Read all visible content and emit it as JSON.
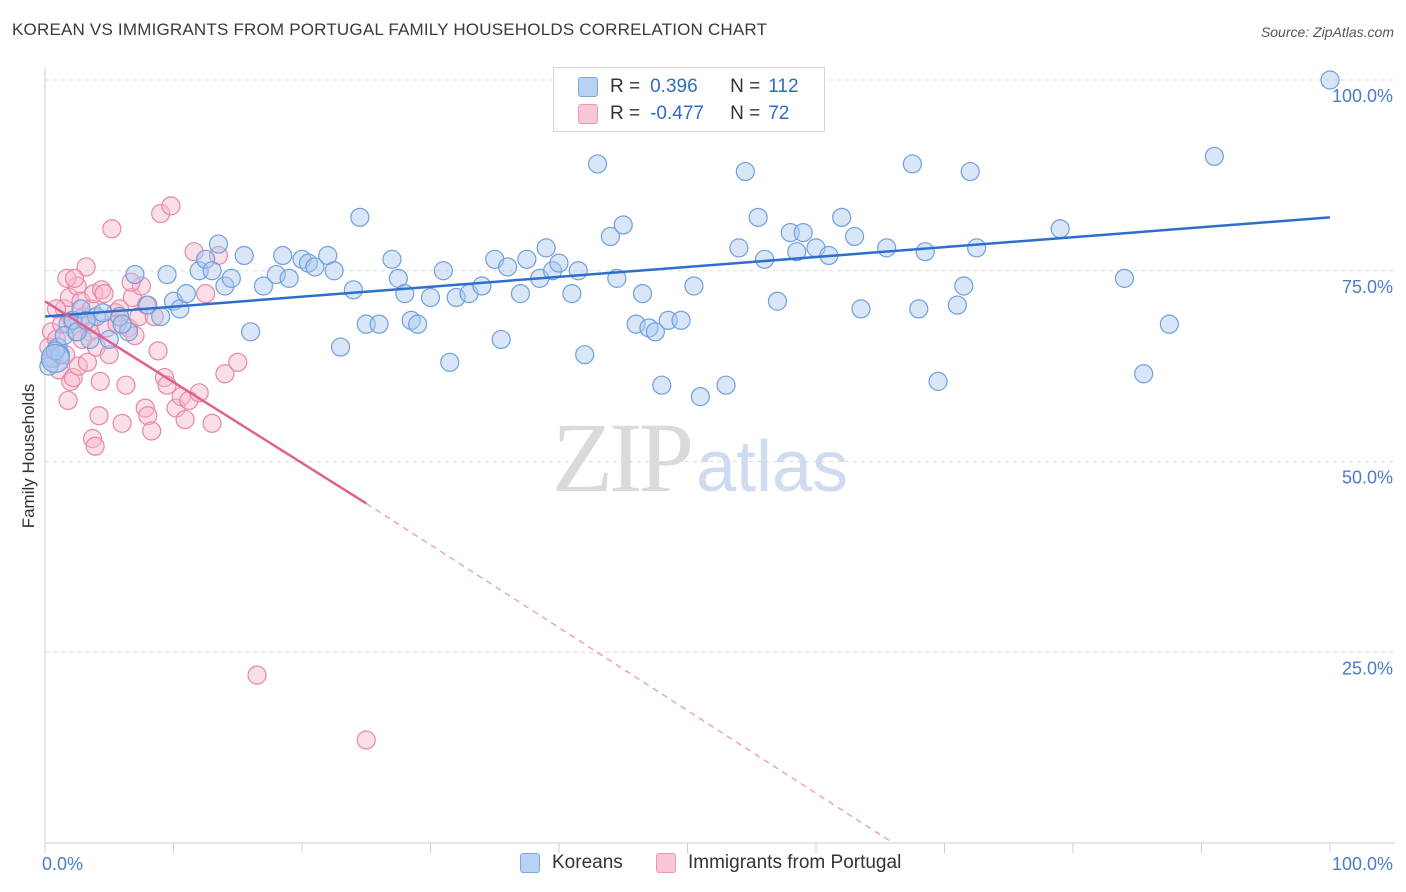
{
  "header": {
    "title": "KOREAN VS IMMIGRANTS FROM PORTUGAL FAMILY HOUSEHOLDS CORRELATION CHART",
    "source": "Source: ZipAtlas.com"
  },
  "watermark": {
    "zip": "ZIP",
    "atlas": "atlas"
  },
  "legend": {
    "korean": {
      "r_label": "R =",
      "r_value": "0.396",
      "n_label": "N =",
      "n_value": "112"
    },
    "portugal": {
      "r_label": "R =",
      "r_value": "-0.477",
      "n_label": "N =",
      "n_value": "72"
    }
  },
  "colors": {
    "korean_fill": "#a9c8f0",
    "korean_stroke": "#6f9fdc",
    "korean_line": "#2f6fcc",
    "portugal_fill": "#f7b9cc",
    "portugal_stroke": "#e886a6",
    "portugal_line": "#e0608f",
    "tick_label": "#4a7cc8"
  },
  "chart_data": {
    "type": "scatter",
    "ylabel": "Family Households",
    "xlabel": "",
    "xlim": [
      0,
      100
    ],
    "ylim": [
      0,
      100
    ],
    "x_tick_labels": [
      {
        "value": 0,
        "label": "0.0%"
      },
      {
        "value": 100,
        "label": "100.0%"
      }
    ],
    "y_tick_labels": [
      {
        "value": 25,
        "label": "25.0%"
      },
      {
        "value": 50,
        "label": "50.0%"
      },
      {
        "value": 75,
        "label": "75.0%"
      },
      {
        "value": 100,
        "label": "100.0%"
      }
    ],
    "grid": "horizontal dashed",
    "legend_position": "top-center",
    "series": [
      {
        "name": "Koreans",
        "color": "#6f9fdc",
        "trend": {
          "x0": 0,
          "y0": 69.0,
          "x1": 100,
          "y1": 82.0
        },
        "points": [
          [
            0.5,
            63.5
          ],
          [
            1.0,
            65.0
          ],
          [
            1.2,
            64.0
          ],
          [
            1.8,
            68.0
          ],
          [
            2.2,
            68.5
          ],
          [
            2.8,
            70.0
          ],
          [
            3.5,
            66.0
          ],
          [
            4.0,
            69.0
          ],
          [
            5.0,
            66.0
          ],
          [
            5.8,
            69.0
          ],
          [
            6.5,
            67.0
          ],
          [
            7.0,
            74.5
          ],
          [
            8.0,
            70.5
          ],
          [
            9.0,
            69.0
          ],
          [
            9.5,
            74.5
          ],
          [
            10.0,
            71.0
          ],
          [
            10.5,
            70.0
          ],
          [
            11.0,
            72.0
          ],
          [
            12.0,
            75.0
          ],
          [
            12.5,
            76.5
          ],
          [
            13.0,
            75.0
          ],
          [
            13.5,
            78.5
          ],
          [
            14.0,
            73.0
          ],
          [
            14.5,
            74.0
          ],
          [
            15.5,
            77.0
          ],
          [
            16.0,
            67.0
          ],
          [
            17.0,
            73.0
          ],
          [
            18.0,
            74.5
          ],
          [
            18.5,
            77.0
          ],
          [
            19.0,
            74.0
          ],
          [
            20.0,
            76.5
          ],
          [
            20.5,
            76.0
          ],
          [
            21.0,
            75.5
          ],
          [
            22.0,
            77.0
          ],
          [
            22.5,
            75.0
          ],
          [
            23.0,
            65.0
          ],
          [
            24.0,
            72.5
          ],
          [
            24.5,
            82.0
          ],
          [
            25.0,
            68.0
          ],
          [
            26.0,
            68.0
          ],
          [
            27.0,
            76.5
          ],
          [
            27.5,
            74.0
          ],
          [
            28.0,
            72.0
          ],
          [
            28.5,
            68.5
          ],
          [
            29.0,
            68.0
          ],
          [
            30.0,
            71.5
          ],
          [
            31.0,
            75.0
          ],
          [
            31.5,
            63.0
          ],
          [
            32.0,
            71.5
          ],
          [
            33.0,
            72.0
          ],
          [
            34.0,
            73.0
          ],
          [
            35.0,
            76.5
          ],
          [
            35.5,
            66.0
          ],
          [
            36.0,
            75.5
          ],
          [
            37.0,
            72.0
          ],
          [
            37.5,
            76.5
          ],
          [
            38.5,
            74.0
          ],
          [
            39.0,
            78.0
          ],
          [
            39.5,
            75.0
          ],
          [
            40.0,
            76.0
          ],
          [
            41.0,
            72.0
          ],
          [
            41.5,
            75.0
          ],
          [
            42.0,
            64.0
          ],
          [
            43.0,
            89.0
          ],
          [
            44.0,
            79.5
          ],
          [
            44.5,
            74.0
          ],
          [
            45.0,
            81.0
          ],
          [
            46.0,
            68.0
          ],
          [
            46.5,
            72.0
          ],
          [
            47.0,
            67.5
          ],
          [
            47.5,
            67.0
          ],
          [
            48.0,
            60.0
          ],
          [
            48.5,
            68.5
          ],
          [
            49.5,
            68.5
          ],
          [
            50.5,
            73.0
          ],
          [
            51.0,
            58.5
          ],
          [
            53.0,
            60.0
          ],
          [
            54.0,
            78.0
          ],
          [
            54.5,
            88.0
          ],
          [
            55.5,
            82.0
          ],
          [
            56.0,
            76.5
          ],
          [
            57.0,
            71.0
          ],
          [
            58.0,
            80.0
          ],
          [
            58.5,
            77.5
          ],
          [
            59.0,
            80.0
          ],
          [
            60.0,
            78.0
          ],
          [
            61.0,
            77.0
          ],
          [
            62.0,
            82.0
          ],
          [
            63.0,
            79.5
          ],
          [
            63.5,
            70.0
          ],
          [
            65.5,
            78.0
          ],
          [
            67.5,
            89.0
          ],
          [
            68.0,
            70.0
          ],
          [
            68.5,
            77.5
          ],
          [
            69.5,
            60.5
          ],
          [
            71.0,
            70.5
          ],
          [
            71.5,
            73.0
          ],
          [
            72.0,
            88.0
          ],
          [
            72.5,
            78.0
          ],
          [
            79.0,
            80.5
          ],
          [
            84.0,
            74.0
          ],
          [
            85.5,
            61.5
          ],
          [
            87.5,
            68.0
          ],
          [
            91.0,
            90.0
          ],
          [
            100.0,
            100.0
          ],
          [
            0.3,
            62.5
          ],
          [
            0.8,
            64.5
          ],
          [
            1.5,
            66.5
          ],
          [
            2.5,
            67.0
          ],
          [
            3.2,
            68.5
          ],
          [
            4.5,
            69.5
          ],
          [
            6.0,
            68.0
          ]
        ]
      },
      {
        "name": "Immigrants from Portugal",
        "color": "#e886a6",
        "trend": {
          "x0": 0,
          "y0": 71.0,
          "x1": 25,
          "y1": 44.5,
          "dash_to_x": 66,
          "dash_to_y": 0
        },
        "points": [
          [
            0.3,
            65.0
          ],
          [
            0.5,
            67.0
          ],
          [
            0.7,
            63.5
          ],
          [
            0.9,
            66.0
          ],
          [
            1.1,
            62.0
          ],
          [
            1.3,
            68.0
          ],
          [
            1.5,
            70.0
          ],
          [
            1.6,
            64.0
          ],
          [
            1.8,
            58.0
          ],
          [
            1.9,
            71.5
          ],
          [
            2.0,
            60.5
          ],
          [
            2.2,
            61.0
          ],
          [
            2.4,
            67.0
          ],
          [
            2.5,
            73.0
          ],
          [
            2.6,
            62.5
          ],
          [
            2.8,
            71.0
          ],
          [
            3.0,
            69.0
          ],
          [
            3.2,
            75.5
          ],
          [
            3.4,
            68.0
          ],
          [
            3.5,
            67.0
          ],
          [
            3.6,
            70.0
          ],
          [
            3.7,
            53.0
          ],
          [
            3.8,
            72.0
          ],
          [
            3.9,
            52.0
          ],
          [
            4.0,
            65.0
          ],
          [
            4.2,
            56.0
          ],
          [
            4.3,
            60.5
          ],
          [
            4.4,
            72.5
          ],
          [
            4.6,
            72.0
          ],
          [
            4.8,
            67.5
          ],
          [
            5.0,
            64.0
          ],
          [
            5.2,
            80.5
          ],
          [
            5.5,
            69.5
          ],
          [
            5.8,
            70.0
          ],
          [
            6.0,
            55.0
          ],
          [
            6.3,
            60.0
          ],
          [
            6.5,
            67.5
          ],
          [
            6.8,
            71.5
          ],
          [
            7.0,
            66.5
          ],
          [
            7.3,
            69.0
          ],
          [
            7.5,
            73.0
          ],
          [
            7.8,
            57.0
          ],
          [
            8.0,
            56.0
          ],
          [
            8.3,
            54.0
          ],
          [
            8.5,
            69.0
          ],
          [
            8.8,
            64.5
          ],
          [
            9.0,
            82.5
          ],
          [
            9.3,
            61.0
          ],
          [
            9.5,
            60.0
          ],
          [
            9.8,
            83.5
          ],
          [
            10.2,
            57.0
          ],
          [
            10.6,
            58.5
          ],
          [
            10.9,
            55.5
          ],
          [
            11.2,
            58.0
          ],
          [
            11.6,
            77.5
          ],
          [
            12.0,
            59.0
          ],
          [
            12.5,
            72.0
          ],
          [
            13.0,
            55.0
          ],
          [
            13.5,
            77.0
          ],
          [
            14.0,
            61.5
          ],
          [
            15.0,
            63.0
          ],
          [
            16.5,
            22.0
          ],
          [
            25.0,
            13.5
          ],
          [
            2.1,
            68.5
          ],
          [
            2.9,
            66.0
          ],
          [
            3.3,
            63.0
          ],
          [
            5.6,
            68.0
          ],
          [
            6.7,
            73.5
          ],
          [
            1.7,
            74.0
          ],
          [
            0.9,
            70.0
          ],
          [
            2.3,
            74.0
          ],
          [
            7.9,
            70.5
          ]
        ]
      }
    ]
  }
}
